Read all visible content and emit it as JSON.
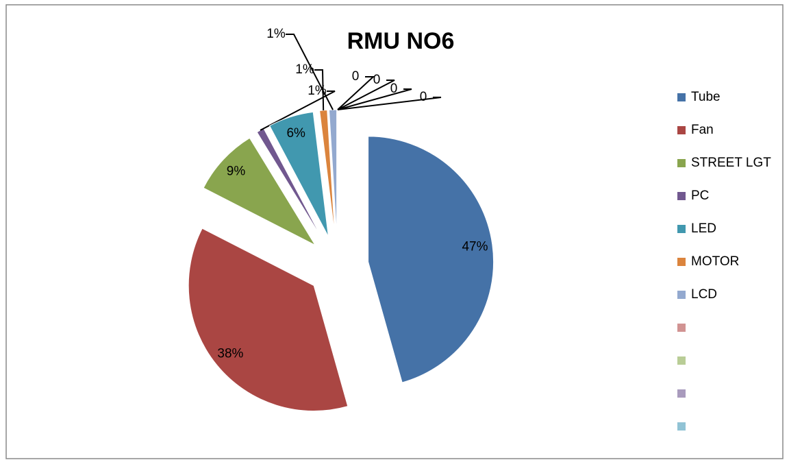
{
  "chart_data": {
    "type": "pie",
    "title": "RMU NO6",
    "categories": [
      "Tube",
      "Fan",
      "STREET LGT",
      "PC",
      "LED",
      "MOTOR",
      "LCD",
      null,
      null,
      null,
      null
    ],
    "values": [
      47,
      38,
      9,
      1,
      6,
      1,
      1,
      0,
      0,
      0,
      0
    ],
    "value_labels": [
      "47%",
      "38%",
      "9%",
      "1%",
      "6%",
      "1%",
      "1%",
      "0",
      "0",
      "0",
      "0"
    ],
    "colors": [
      "#4572a7",
      "#aa4643",
      "#89a54e",
      "#71588f",
      "#4198af",
      "#db843d",
      "#93a9cf",
      "#d19392",
      "#b9cd96",
      "#a99bbd",
      "#91c3d5"
    ],
    "legend": "right"
  }
}
